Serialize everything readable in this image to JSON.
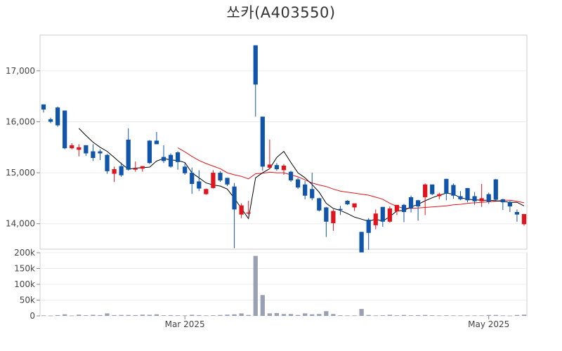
{
  "title": "쏘카(A403550)",
  "chart_data": [
    {
      "type": "candlestick",
      "title": "쏘카(A403550)",
      "xlabel": "",
      "ylabel": "",
      "ylim": [
        13500,
        17700
      ],
      "y_ticks": [
        14000,
        15000,
        16000,
        17000
      ],
      "y_tick_labels": [
        "14,000",
        "15,000",
        "16,000",
        "17,000"
      ],
      "grid": true,
      "colors": {
        "up": "#e0141c",
        "down": "#1155aa",
        "ma_short": "#000000",
        "ma_long": "#e0141c"
      },
      "candles": [
        [
          16340,
          16340,
          16180,
          16240
        ],
        [
          16050,
          16080,
          15970,
          16000
        ],
        [
          16280,
          16300,
          15900,
          15930
        ],
        [
          16220,
          16220,
          15460,
          15480
        ],
        [
          15480,
          15580,
          15460,
          15540
        ],
        [
          15450,
          15560,
          15320,
          15500
        ],
        [
          15540,
          15540,
          15330,
          15380
        ],
        [
          15420,
          15560,
          15230,
          15290
        ],
        [
          15420,
          15460,
          15250,
          15380
        ],
        [
          15350,
          15370,
          14980,
          15030
        ],
        [
          14980,
          15120,
          14820,
          15070
        ],
        [
          15130,
          15200,
          14920,
          14950
        ],
        [
          15650,
          15870,
          15040,
          15060
        ],
        [
          15080,
          15220,
          15020,
          15080
        ],
        [
          15080,
          15130,
          15020,
          15130
        ],
        [
          15630,
          15640,
          15170,
          15190
        ],
        [
          15630,
          15800,
          15560,
          15560
        ],
        [
          15310,
          15540,
          15190,
          15230
        ],
        [
          15350,
          15380,
          15100,
          15120
        ],
        [
          15400,
          15420,
          15060,
          15210
        ],
        [
          15120,
          15200,
          14960,
          14990
        ],
        [
          15000,
          15100,
          14590,
          14780
        ],
        [
          14830,
          15050,
          14640,
          14690
        ],
        [
          14580,
          14690,
          14570,
          14680
        ],
        [
          14700,
          15050,
          14690,
          15000
        ],
        [
          15000,
          15030,
          14820,
          14850
        ],
        [
          14900,
          14900,
          14740,
          14770
        ],
        [
          14730,
          14800,
          13520,
          14280
        ],
        [
          14180,
          14400,
          14110,
          14360
        ],
        [
          14200,
          14450,
          14180,
          14220
        ],
        [
          17500,
          17500,
          16100,
          16730
        ],
        [
          16100,
          16100,
          15040,
          15120
        ],
        [
          15100,
          15650,
          15070,
          15160
        ],
        [
          15150,
          15190,
          15040,
          15070
        ],
        [
          15050,
          15170,
          14960,
          15140
        ],
        [
          15020,
          15040,
          14820,
          14850
        ],
        [
          14870,
          14900,
          14680,
          14710
        ],
        [
          14770,
          14840,
          14480,
          14550
        ],
        [
          14680,
          15000,
          14460,
          14500
        ],
        [
          14500,
          14510,
          14240,
          14260
        ],
        [
          14320,
          14330,
          13740,
          14040
        ],
        [
          14010,
          14280,
          13860,
          14250
        ],
        [
          14290,
          14350,
          14170,
          14280
        ],
        [
          14450,
          14460,
          14370,
          14380
        ],
        [
          14320,
          14390,
          14250,
          14400
        ],
        [
          13840,
          13840,
          13400,
          13400
        ],
        [
          14080,
          14110,
          13490,
          13820
        ],
        [
          13970,
          14280,
          13890,
          14200
        ],
        [
          14330,
          14330,
          13940,
          14040
        ],
        [
          14040,
          14340,
          14020,
          14300
        ],
        [
          14240,
          14360,
          14170,
          14370
        ],
        [
          14370,
          14390,
          14030,
          14230
        ],
        [
          14520,
          14550,
          14220,
          14300
        ],
        [
          14460,
          14470,
          14060,
          14340
        ],
        [
          14520,
          14790,
          14170,
          14770
        ],
        [
          14770,
          14770,
          14560,
          14580
        ],
        [
          14540,
          14610,
          14480,
          14580
        ],
        [
          14880,
          14880,
          14460,
          14590
        ],
        [
          14760,
          14790,
          14490,
          14550
        ],
        [
          14540,
          14640,
          14460,
          14480
        ],
        [
          14700,
          14700,
          14420,
          14460
        ],
        [
          14540,
          14620,
          14370,
          14440
        ],
        [
          14440,
          14780,
          14330,
          14500
        ],
        [
          14580,
          14610,
          14390,
          14430
        ],
        [
          14870,
          14880,
          14460,
          14470
        ],
        [
          14480,
          14490,
          14270,
          14420
        ],
        [
          14430,
          14450,
          14230,
          14340
        ],
        [
          14230,
          14280,
          14040,
          14180
        ],
        [
          13990,
          14190,
          13960,
          14190
        ]
      ],
      "ma_short": [
        null,
        null,
        null,
        null,
        null,
        15870,
        15730,
        15600,
        15500,
        15420,
        15300,
        15180,
        15070,
        15090,
        15100,
        15110,
        15230,
        15280,
        15250,
        15240,
        15200,
        15000,
        14900,
        14800,
        14760,
        14740,
        14680,
        14500,
        14300,
        14100,
        14900,
        15000,
        15080,
        15300,
        15420,
        15200,
        15000,
        14900,
        14770,
        14620,
        14400,
        14300,
        14260,
        14200,
        14130,
        14090,
        14050,
        14090,
        14050,
        14140,
        14250,
        14260,
        14330,
        14380,
        14450,
        14510,
        14560,
        14600,
        14580,
        14510,
        14480,
        14470,
        14460,
        14460,
        14450,
        14440,
        14420,
        14420,
        14350
      ],
      "ma_long": [
        null,
        null,
        null,
        null,
        null,
        null,
        null,
        null,
        null,
        null,
        null,
        null,
        null,
        null,
        null,
        null,
        null,
        null,
        null,
        15490,
        15410,
        15320,
        15240,
        15180,
        15130,
        15080,
        15000,
        14960,
        14930,
        14880,
        14980,
        14990,
        15010,
        15000,
        15000,
        14960,
        14920,
        14860,
        14800,
        14760,
        14730,
        14680,
        14640,
        14620,
        14600,
        14580,
        14560,
        14520,
        14480,
        14400,
        14340,
        14300,
        14300,
        14310,
        14320,
        14330,
        14340,
        14350,
        14370,
        14380,
        14400,
        14410,
        14420,
        14430,
        14440,
        14460,
        14460,
        14440,
        14410
      ],
      "volume_ylim": [
        0,
        200000
      ],
      "volume_ticks": [
        0,
        50000,
        100000,
        150000,
        200000
      ],
      "volume_tick_labels": [
        "0",
        "50k",
        "100k",
        "150k",
        "200k"
      ],
      "volume": [
        1500,
        1000,
        2500,
        5000,
        1200,
        4000,
        2000,
        3500,
        2500,
        8000,
        2500,
        3000,
        3000,
        2500,
        4000,
        3500,
        5000,
        2000,
        2500,
        2000,
        1500,
        3500,
        2500,
        1500,
        2000,
        3000,
        4000,
        5000,
        8000,
        3000,
        190000,
        66000,
        8000,
        9000,
        6000,
        6000,
        3000,
        8000,
        5000,
        6000,
        15000,
        6000,
        2000,
        1500,
        1500,
        22000,
        3000,
        1500,
        2000,
        3500,
        2000,
        3000,
        2000,
        2500,
        3000,
        2000,
        1500,
        2000,
        1500,
        1500,
        1500,
        1500,
        1500,
        3000,
        3000,
        1500,
        1000,
        3000,
        4000
      ],
      "x_tick_labels": [
        {
          "label": "Mar 2025",
          "index": 20
        },
        {
          "label": "May 2025",
          "index": 63
        }
      ]
    }
  ]
}
